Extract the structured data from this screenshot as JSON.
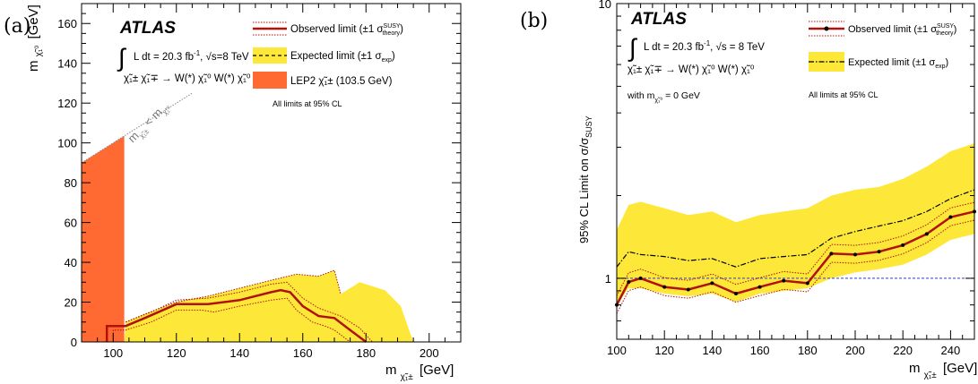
{
  "chart_data": [
    {
      "panel_label": "(a)",
      "type": "area",
      "brand": "ATLAS",
      "lumi_text": "L dt = 20.3 fb",
      "lumi_sup": "-1",
      "energy_text": "√s=8 TeV",
      "process_text": "χ̃₁± χ̃₁∓ → W(*) χ̃₁⁰ W(*) χ̃₁⁰",
      "cl_note": "All limits at 95% CL",
      "xlabel": "m",
      "xlabel_sub": "χ̃₁±",
      "xlabel_unit": "[GeV]",
      "ylabel": "m",
      "ylabel_sub": "χ̃₁⁰",
      "ylabel_unit": "[GeV]",
      "xlim": [
        90,
        210
      ],
      "ylim": [
        0,
        170
      ],
      "xticks": [
        "100",
        "120",
        "140",
        "160",
        "180",
        "200"
      ],
      "yticks": [
        "0",
        "20",
        "40",
        "60",
        "80",
        "100",
        "120",
        "140",
        "160"
      ],
      "diagonal_label": "m",
      "diagonal_label_sub1": "χ̃₁±",
      "diagonal_label_mid": " < m",
      "diagonal_label_sub2": "χ̃₁⁰",
      "legend": [
        {
          "label": "Observed limit (±1 σ",
          "sup": "SUSY",
          "sub": "theory",
          "tail": ")"
        },
        {
          "label": "Expected limit (±1 σ",
          "sub": "exp",
          "tail": ")"
        },
        {
          "label": "LEP2 χ̃₁± (103.5 GeV)"
        }
      ],
      "lep2_limit": 103.5,
      "expected_band": {
        "upper": [
          [
            100,
            0
          ],
          [
            103.5,
            0
          ],
          [
            104,
            10
          ],
          [
            110,
            14
          ],
          [
            120,
            20
          ],
          [
            130,
            23
          ],
          [
            140,
            27
          ],
          [
            150,
            31
          ],
          [
            158,
            34
          ],
          [
            165,
            33
          ],
          [
            170,
            36
          ],
          [
            172,
            24
          ],
          [
            178,
            30
          ],
          [
            186,
            26
          ],
          [
            191,
            18
          ],
          [
            195,
            0
          ]
        ],
        "lower": [
          [
            104,
            0
          ],
          [
            195,
            0
          ]
        ]
      },
      "observed": [
        [
          98,
          0
        ],
        [
          98,
          8
        ],
        [
          104,
          8
        ],
        [
          110,
          12
        ],
        [
          120,
          19
        ],
        [
          130,
          19
        ],
        [
          140,
          21
        ],
        [
          150,
          25
        ],
        [
          153,
          26
        ],
        [
          156,
          25
        ],
        [
          160,
          18
        ],
        [
          165,
          13
        ],
        [
          170,
          12
        ],
        [
          175,
          6
        ],
        [
          180,
          0
        ]
      ],
      "observed_plus": [
        [
          104,
          10
        ],
        [
          112,
          15
        ],
        [
          120,
          21
        ],
        [
          130,
          22
        ],
        [
          140,
          25
        ],
        [
          150,
          29
        ],
        [
          155,
          30
        ],
        [
          160,
          22
        ],
        [
          165,
          17
        ],
        [
          172,
          13
        ],
        [
          178,
          7
        ],
        [
          182,
          0
        ]
      ],
      "observed_minus": [
        [
          100,
          0
        ],
        [
          100,
          6
        ],
        [
          104,
          6
        ],
        [
          112,
          10
        ],
        [
          120,
          16
        ],
        [
          128,
          16
        ],
        [
          132,
          15
        ],
        [
          140,
          18
        ],
        [
          150,
          21
        ],
        [
          155,
          22
        ],
        [
          158,
          16
        ],
        [
          163,
          10
        ],
        [
          167,
          8
        ],
        [
          170,
          6
        ],
        [
          175,
          0
        ]
      ],
      "diag_points": [
        [
          90,
          90
        ],
        [
          105,
          105
        ],
        [
          125,
          125
        ]
      ],
      "colors": {
        "observed": "#b0120a",
        "band": "#fde83a",
        "lep": "#ff6a33",
        "dotted": "#b0120a"
      }
    },
    {
      "panel_label": "(b)",
      "type": "line",
      "brand": "ATLAS",
      "lumi_text": "L dt = 20.3 fb",
      "lumi_sup": "-1",
      "energy_text": "√s = 8 TeV",
      "process_text": "χ̃₁± χ̃₁∓ → W(*) χ̃₁⁰ W(*) χ̃₁⁰",
      "mass_note": "with m",
      "mass_note_sub": "χ̃₁⁰",
      "mass_note_tail": " = 0 GeV",
      "cl_note": "All limits at 95% CL",
      "xlabel": "m",
      "xlabel_sub": "χ̃₁±",
      "xlabel_unit": "[GeV]",
      "ylabel": "95% CL Limit on σ/σ",
      "ylabel_sub": "SUSY",
      "xlim": [
        100,
        250
      ],
      "ylim": [
        0.6,
        10
      ],
      "yscale": "log",
      "xticks": [
        "100",
        "120",
        "140",
        "160",
        "180",
        "200",
        "220",
        "240"
      ],
      "yticks": [
        "1",
        "10"
      ],
      "legend": [
        {
          "label": "Observed limit (±1 σ",
          "sup": "SUSY",
          "sub": "theory",
          "tail": ")"
        },
        {
          "label": "Expected limit (±1 σ",
          "sub": "exp",
          "tail": ")"
        }
      ],
      "x": [
        100,
        105,
        110,
        120,
        130,
        140,
        150,
        160,
        170,
        180,
        190,
        200,
        210,
        220,
        230,
        240,
        250
      ],
      "observed": [
        0.8,
        0.97,
        1.0,
        0.93,
        0.91,
        0.96,
        0.88,
        0.93,
        0.98,
        0.96,
        1.23,
        1.22,
        1.25,
        1.32,
        1.45,
        1.67,
        1.75
      ],
      "expected": [
        1.1,
        1.25,
        1.22,
        1.2,
        1.16,
        1.18,
        1.1,
        1.18,
        1.2,
        1.22,
        1.4,
        1.48,
        1.55,
        1.62,
        1.75,
        1.95,
        2.1
      ],
      "band_upper": [
        1.5,
        1.85,
        1.9,
        1.8,
        1.7,
        1.75,
        1.6,
        1.7,
        1.75,
        1.8,
        2.0,
        2.1,
        2.15,
        2.3,
        2.55,
        2.9,
        3.1
      ],
      "band_lower": [
        0.8,
        0.92,
        0.92,
        0.88,
        0.86,
        0.88,
        0.82,
        0.88,
        0.9,
        0.92,
        1.0,
        1.05,
        1.08,
        1.12,
        1.22,
        1.38,
        1.45
      ],
      "colors": {
        "observed": "#b0120a",
        "band": "#fde83a",
        "unity": "#2a3fd6"
      }
    }
  ]
}
